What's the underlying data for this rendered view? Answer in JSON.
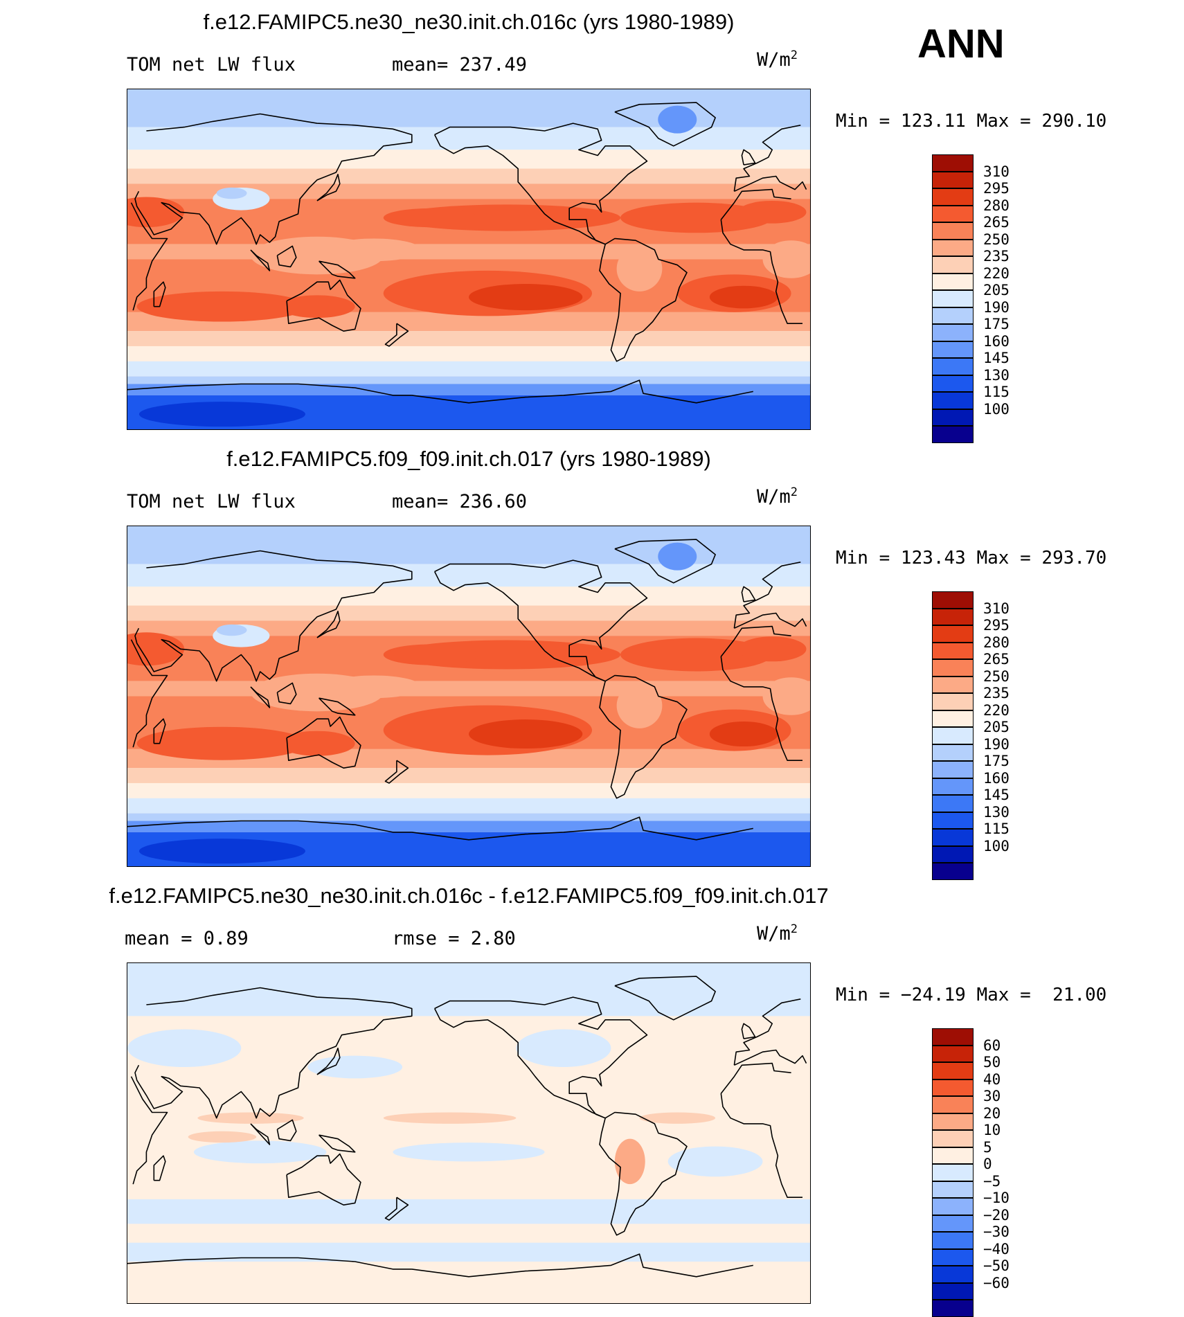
{
  "season": "ANN",
  "colors": {
    "abs": [
      "#08008e",
      "#0018b4",
      "#0838d8",
      "#1c58ee",
      "#3c78f6",
      "#6496fa",
      "#8cb2fc",
      "#b4d0fc",
      "#d8eafe",
      "#fff0e2",
      "#fdd0b6",
      "#fcaa86",
      "#f98258",
      "#f45a30",
      "#e33c14",
      "#c72308",
      "#9e0e04"
    ],
    "diff": [
      "#08008e",
      "#0018b4",
      "#0838d8",
      "#1c58ee",
      "#3c78f6",
      "#6496fa",
      "#8cb2fc",
      "#b4d0fc",
      "#d8eafe",
      "#fff0e2",
      "#fdd0b6",
      "#fcaa86",
      "#f98258",
      "#f45a30",
      "#e33c14",
      "#c72308",
      "#9e0e04"
    ]
  },
  "panels": [
    {
      "title": "f.e12.FAMIPC5.ne30_ne30.init.ch.016c (yrs 1980-1989)",
      "left_label": "TOM net LW flux",
      "mid_label": "mean= 237.49",
      "units": "W/m",
      "units_sup": "2",
      "minmax": "Min = 123.11 Max = 290.10",
      "levels": [
        "310",
        "295",
        "280",
        "265",
        "250",
        "235",
        "220",
        "205",
        "190",
        "175",
        "160",
        "145",
        "130",
        "115",
        "100"
      ]
    },
    {
      "title": "f.e12.FAMIPC5.f09_f09.init.ch.017 (yrs 1980-1989)",
      "left_label": "TOM net LW flux",
      "mid_label": "mean= 236.60",
      "units": "W/m",
      "units_sup": "2",
      "minmax": "Min = 123.43 Max = 293.70",
      "levels": [
        "310",
        "295",
        "280",
        "265",
        "250",
        "235",
        "220",
        "205",
        "190",
        "175",
        "160",
        "145",
        "130",
        "115",
        "100"
      ]
    },
    {
      "title": "f.e12.FAMIPC5.ne30_ne30.init.ch.016c - f.e12.FAMIPC5.f09_f09.init.ch.017",
      "left_label": "mean =    0.89",
      "mid_label": "rmse =    2.80",
      "units": "W/m",
      "units_sup": "2",
      "minmax": "Min = −24.19 Max =  21.00",
      "levels": [
        "60",
        "50",
        "40",
        "30",
        "20",
        "10",
        "5",
        "0",
        "−5",
        "−10",
        "−20",
        "−30",
        "−40",
        "−50",
        "−60"
      ]
    }
  ]
}
